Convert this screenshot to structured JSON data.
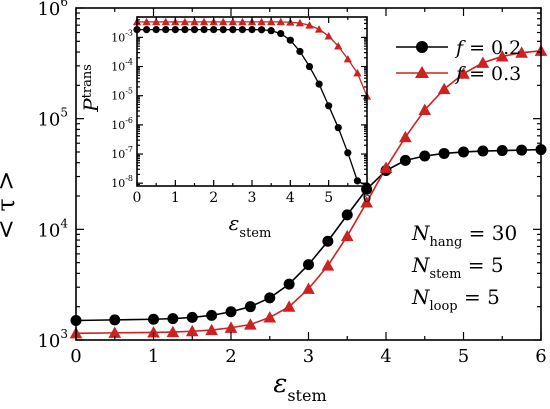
{
  "chart_data": [
    {
      "type": "line",
      "role": "main",
      "xlabel": "ε",
      "xlabel_sub": "stem",
      "ylabel": "< τ >",
      "xlim": [
        0,
        6
      ],
      "ylim": [
        1000,
        1000000
      ],
      "yscale": "log",
      "x_ticks": [
        0,
        1,
        2,
        3,
        4,
        5,
        6
      ],
      "x_tick_labels": [
        "0",
        "1",
        "2",
        "3",
        "4",
        "5",
        "6"
      ],
      "y_ticks": [
        1000,
        10000,
        100000,
        1000000
      ],
      "y_tick_labels": [
        {
          "base": "10",
          "exp": "3"
        },
        {
          "base": "10",
          "exp": "4"
        },
        {
          "base": "10",
          "exp": "5"
        },
        {
          "base": "10",
          "exp": "6"
        }
      ],
      "series": [
        {
          "name": "f = 0.2",
          "color": "#000000",
          "marker": "circle",
          "x": [
            0,
            0.5,
            1,
            1.25,
            1.5,
            1.75,
            2,
            2.25,
            2.5,
            2.75,
            3,
            3.25,
            3.5,
            3.75,
            4,
            4.25,
            4.5,
            4.75,
            5,
            5.25,
            5.5,
            5.75,
            6
          ],
          "y": [
            1500,
            1520,
            1540,
            1560,
            1600,
            1670,
            1800,
            2000,
            2400,
            3200,
            4800,
            7800,
            13500,
            23000,
            34000,
            42000,
            46000,
            48500,
            50000,
            51000,
            51500,
            52000,
            52500
          ]
        },
        {
          "name": "f = 0.3",
          "color": "#cc2222",
          "marker": "triangle",
          "x": [
            0,
            0.5,
            1,
            1.25,
            1.5,
            1.75,
            2,
            2.25,
            2.5,
            2.75,
            3,
            3.25,
            3.5,
            3.75,
            4,
            4.25,
            4.5,
            4.75,
            5,
            5.25,
            5.5,
            5.75,
            6
          ],
          "y": [
            1150,
            1160,
            1170,
            1180,
            1200,
            1230,
            1290,
            1380,
            1600,
            2000,
            2900,
            4700,
            8700,
            17500,
            36000,
            68000,
            120000,
            185000,
            255000,
            320000,
            365000,
            395000,
            410000
          ]
        }
      ],
      "legend": {
        "position": "top-right",
        "labels": [
          {
            "var": "f",
            "value": " = 0.2"
          },
          {
            "var": "f",
            "value": " = 0.3"
          }
        ]
      },
      "annotations": [
        {
          "var": "N",
          "sub": "hang",
          "value": " = 30"
        },
        {
          "var": "N",
          "sub": "stem",
          "value": " = 5"
        },
        {
          "var": "N",
          "sub": "loop",
          "value": " = 5"
        }
      ]
    },
    {
      "type": "line",
      "role": "inset",
      "xlabel": "ε",
      "xlabel_sub": "stem",
      "ylabel": "P",
      "ylabel_sub": "trans",
      "xlim": [
        0,
        6
      ],
      "ylim": [
        8e-09,
        0.005
      ],
      "yscale": "log",
      "x_ticks": [
        0,
        1,
        2,
        3,
        4,
        5,
        6
      ],
      "x_tick_labels": [
        "0",
        "1",
        "2",
        "3",
        "4",
        "5",
        "6"
      ],
      "y_ticks": [
        1e-08,
        1e-07,
        1e-06,
        1e-05,
        0.0001,
        0.001
      ],
      "y_tick_labels": [
        {
          "base": "10",
          "exp": "-8"
        },
        {
          "base": "10",
          "exp": "-7"
        },
        {
          "base": "10",
          "exp": "-6"
        },
        {
          "base": "10",
          "exp": "-5"
        },
        {
          "base": "10",
          "exp": "-4"
        },
        {
          "base": "10",
          "exp": "-3"
        }
      ],
      "series": [
        {
          "name": "f = 0.2",
          "color": "#000000",
          "marker": "circle",
          "x": [
            0,
            0.25,
            0.5,
            0.75,
            1,
            1.25,
            1.5,
            1.75,
            2,
            2.25,
            2.5,
            2.75,
            3,
            3.25,
            3.5,
            3.75,
            4,
            4.25,
            4.5,
            4.75,
            5,
            5.25,
            5.5,
            5.75,
            6
          ],
          "y": [
            0.00185,
            0.00185,
            0.00185,
            0.00185,
            0.00185,
            0.00185,
            0.00185,
            0.00185,
            0.00185,
            0.00185,
            0.00185,
            0.00185,
            0.00185,
            0.00183,
            0.0017,
            0.00135,
            0.0008,
            0.00033,
            0.0001,
            2.5e-05,
            4.5e-06,
            8e-07,
            1.1e-07,
            1.2e-08,
            8e-09
          ]
        },
        {
          "name": "f = 0.3",
          "color": "#cc2222",
          "marker": "triangle",
          "x": [
            0,
            0.25,
            0.5,
            0.75,
            1,
            1.25,
            1.5,
            1.75,
            2,
            2.25,
            2.5,
            2.75,
            3,
            3.25,
            3.5,
            3.75,
            4,
            4.25,
            4.5,
            4.75,
            5,
            5.25,
            5.5,
            5.75,
            6
          ],
          "y": [
            0.0034,
            0.0034,
            0.0034,
            0.0034,
            0.0034,
            0.0034,
            0.0034,
            0.0034,
            0.0034,
            0.0034,
            0.0034,
            0.0034,
            0.0034,
            0.0034,
            0.0034,
            0.0034,
            0.0033,
            0.0031,
            0.0026,
            0.0019,
            0.0011,
            0.0005,
            0.00018,
            6e-05,
            9.5e-06
          ]
        }
      ]
    }
  ]
}
